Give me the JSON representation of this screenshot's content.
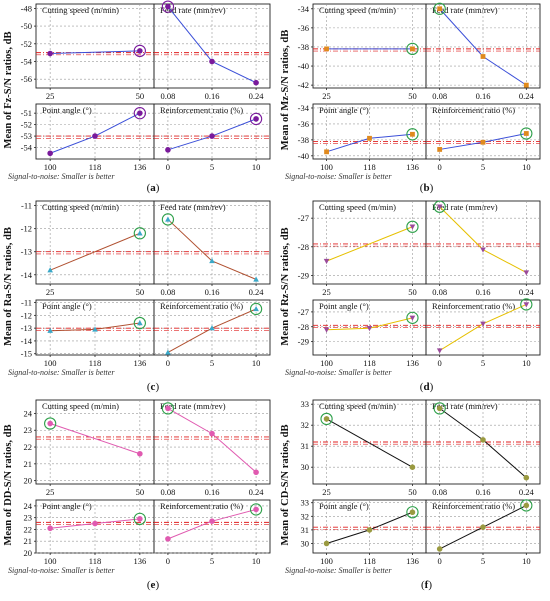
{
  "figure_note": "Signal-to-noise: Smaller is better",
  "panel_titles": [
    "Cutting speed (m/min)",
    "Feed rate (mm/rev)",
    "Point angle (°)",
    "Reinforcement ratio (%)"
  ],
  "chart_data": [
    {
      "type": "line",
      "letter": "(a)",
      "ylabel": "Mean of Fz-S/N ratios, dB",
      "line_color": "#3b4fd8",
      "marker_color": "#7a1a9c",
      "marker": "circle",
      "highlight_color": "#7a1a9c",
      "mean": -53.0,
      "rows": [
        {
          "ylim": [
            -57,
            -47.5
          ],
          "yticks": [
            -48,
            -50,
            -52,
            -54,
            -56
          ],
          "ticklabels": [
            "-48",
            "-50",
            "-52",
            "-54",
            "-56"
          ],
          "factors": [
            {
              "title": "Cutting speed (m/min)",
              "categories": [
                "25",
                "50"
              ],
              "values": [
                -53.1,
                -52.8
              ],
              "best": 1
            },
            {
              "title": "Feed rate (mm/rev)",
              "categories": [
                "0.08",
                "0.16",
                "0.24"
              ],
              "values": [
                -47.8,
                -54.0,
                -56.4
              ],
              "best": 0
            }
          ]
        },
        {
          "ylim": [
            -55,
            -50.2
          ],
          "yticks": [
            -51,
            -52,
            -53,
            -54
          ],
          "ticklabels": [
            "-51",
            "-52",
            "-53",
            "-54"
          ],
          "factors": [
            {
              "title": "Point angle (°)",
              "categories": [
                "100",
                "118",
                "136"
              ],
              "values": [
                -54.5,
                -53.0,
                -51.0
              ],
              "best": 2
            },
            {
              "title": "Reinforcement ratio (%)",
              "categories": [
                "0",
                "5",
                "10"
              ],
              "values": [
                -54.2,
                -53.0,
                -51.5
              ],
              "best": 2
            }
          ]
        }
      ]
    },
    {
      "type": "line",
      "letter": "(b)",
      "ylabel": "Mean of Mz-S/N ratios, dB",
      "line_color": "#3b4fd8",
      "marker_color": "#e08a1e",
      "marker": "square",
      "highlight_color": "#2ea04a",
      "mean": -38.2,
      "rows": [
        {
          "ylim": [
            -42.3,
            -33.5
          ],
          "yticks": [
            -34,
            -36,
            -38,
            -40,
            -42
          ],
          "ticklabels": [
            "-34",
            "-36",
            "-38",
            "-40",
            "-42"
          ],
          "factors": [
            {
              "title": "Cutting speed (m/min)",
              "categories": [
                "25",
                "50"
              ],
              "values": [
                -38.2,
                -38.2
              ],
              "best": 1
            },
            {
              "title": "Feed rate (mm/rev)",
              "categories": [
                "0.08",
                "0.16",
                "0.24"
              ],
              "values": [
                -34.0,
                -39.0,
                -42.0
              ],
              "best": 0
            }
          ]
        },
        {
          "ylim": [
            -40.4,
            -33.5
          ],
          "yticks": [
            -34,
            -36,
            -38,
            -40
          ],
          "ticklabels": [
            "-34",
            "-36",
            "-38",
            "-40"
          ],
          "factors": [
            {
              "title": "Point angle (°)",
              "categories": [
                "100",
                "118",
                "136"
              ],
              "values": [
                -39.5,
                -37.8,
                -37.3
              ],
              "best": 2
            },
            {
              "title": "Reinforcement ratio (%)",
              "categories": [
                "0",
                "5",
                "10"
              ],
              "values": [
                -39.2,
                -38.3,
                -37.2
              ],
              "best": 2
            }
          ]
        }
      ]
    },
    {
      "type": "line",
      "letter": "(c)",
      "ylabel": "Mean of Ra-S/N ratios, dB",
      "line_color": "#b05030",
      "marker_color": "#3aa8c8",
      "marker": "triangle",
      "highlight_color": "#2ea04a",
      "mean": -13.0,
      "rows": [
        {
          "ylim": [
            -14.4,
            -10.8
          ],
          "yticks": [
            -11,
            -12,
            -13,
            -14
          ],
          "ticklabels": [
            "-11",
            "-12",
            "-13",
            "-14"
          ],
          "factors": [
            {
              "title": "Cutting speed (m/min)",
              "categories": [
                "25",
                "50"
              ],
              "values": [
                -13.8,
                -12.2
              ],
              "best": 1
            },
            {
              "title": "Feed rate (mm/rev)",
              "categories": [
                "0.08",
                "0.16",
                "0.24"
              ],
              "values": [
                -11.6,
                -13.4,
                -14.2
              ],
              "best": 0
            }
          ]
        },
        {
          "ylim": [
            -15.1,
            -10.8
          ],
          "yticks": [
            -11,
            -12,
            -13,
            -14,
            -15
          ],
          "ticklabels": [
            "-11",
            "-12",
            "-13",
            "-14",
            "-15"
          ],
          "factors": [
            {
              "title": "Point angle (°)",
              "categories": [
                "100",
                "118",
                "136"
              ],
              "values": [
                -13.2,
                -13.1,
                -12.6
              ],
              "best": 2
            },
            {
              "title": "Reinforcement ratio (%)",
              "categories": [
                "0",
                "5",
                "10"
              ],
              "values": [
                -14.9,
                -13.0,
                -11.5
              ],
              "best": 2
            }
          ]
        }
      ]
    },
    {
      "type": "line",
      "letter": "(d)",
      "ylabel": "Mean of Rz-S/N ratios, dB",
      "line_color": "#e6c000",
      "marker_color": "#9a4a9a",
      "marker": "triangle-down",
      "highlight_color": "#2ea04a",
      "mean": -27.9,
      "rows": [
        {
          "ylim": [
            -29.3,
            -26.4
          ],
          "yticks": [
            -27,
            -28,
            -29
          ],
          "ticklabels": [
            "-27",
            "-28",
            "-29"
          ],
          "factors": [
            {
              "title": "Cutting speed (m/min)",
              "categories": [
                "25",
                "50"
              ],
              "values": [
                -28.5,
                -27.3
              ],
              "best": 1
            },
            {
              "title": "Feed rate (mm/rev)",
              "categories": [
                "0.08",
                "0.16",
                "0.24"
              ],
              "values": [
                -26.6,
                -28.1,
                -28.9
              ],
              "best": 0
            }
          ]
        },
        {
          "ylim": [
            -29.9,
            -26.2
          ],
          "yticks": [
            -27,
            -28,
            -29
          ],
          "ticklabels": [
            "-27",
            "-28",
            "-29"
          ],
          "factors": [
            {
              "title": "Point angle (°)",
              "categories": [
                "100",
                "118",
                "136"
              ],
              "values": [
                -28.2,
                -28.1,
                -27.4
              ],
              "best": 2
            },
            {
              "title": "Reinforcement ratio (%)",
              "categories": [
                "0",
                "5",
                "10"
              ],
              "values": [
                -29.6,
                -27.8,
                -26.5
              ],
              "best": 2
            }
          ]
        }
      ]
    },
    {
      "type": "line",
      "letter": "(e)",
      "ylabel": "Mean of DD-S/N ratios, dB",
      "line_color": "#e05ab0",
      "marker_color": "#e05ab0",
      "marker": "circle",
      "highlight_color": "#2ea04a",
      "mean": 22.6,
      "rows": [
        {
          "ylim": [
            19.8,
            24.8
          ],
          "yticks": [
            20,
            21,
            22,
            23,
            24
          ],
          "ticklabels": [
            "20",
            "21",
            "22",
            "23",
            "24"
          ],
          "factors": [
            {
              "title": "Cutting speed (m/min)",
              "categories": [
                "25",
                "50"
              ],
              "values": [
                23.4,
                21.6
              ],
              "best": 0
            },
            {
              "title": "Feed rate (mm/rev)",
              "categories": [
                "0.08",
                "0.16",
                "0.24"
              ],
              "values": [
                24.3,
                22.8,
                20.5
              ],
              "best": 0
            }
          ]
        },
        {
          "ylim": [
            20,
            24.5
          ],
          "yticks": [
            20,
            21,
            22,
            23,
            24
          ],
          "ticklabels": [
            "20",
            "21",
            "22",
            "23",
            "24"
          ],
          "factors": [
            {
              "title": "Point angle (°)",
              "categories": [
                "100",
                "118",
                "136"
              ],
              "values": [
                22.1,
                22.5,
                22.9
              ],
              "best": 2
            },
            {
              "title": "Reinforcement ratio (%)",
              "categories": [
                "0",
                "5",
                "10"
              ],
              "values": [
                21.2,
                22.7,
                23.7
              ],
              "best": 2
            }
          ]
        }
      ]
    },
    {
      "type": "line",
      "letter": "(f)",
      "ylabel": "Mean of CD-S/N ratios, dB",
      "line_color": "#111111",
      "marker_color": "#9a9a40",
      "marker": "circle",
      "highlight_color": "#2ea04a",
      "mean": 31.2,
      "rows": [
        {
          "ylim": [
            29.2,
            33.2
          ],
          "yticks": [
            30,
            31,
            32,
            33
          ],
          "ticklabels": [
            "30",
            "31",
            "32",
            "33"
          ],
          "factors": [
            {
              "title": "Cutting speed (m/min)",
              "categories": [
                "25",
                "50"
              ],
              "values": [
                32.3,
                30.0
              ],
              "best": 0
            },
            {
              "title": "Feed rate (mm/rev)",
              "categories": [
                "0.08",
                "0.16",
                "0.24"
              ],
              "values": [
                32.8,
                31.3,
                29.5
              ],
              "best": 0
            }
          ]
        },
        {
          "ylim": [
            29.3,
            33.2
          ],
          "yticks": [
            30,
            31,
            32,
            33
          ],
          "ticklabels": [
            "30",
            "31",
            "32",
            "33"
          ],
          "factors": [
            {
              "title": "Point angle (°)",
              "categories": [
                "100",
                "118",
                "136"
              ],
              "values": [
                30.0,
                31.0,
                32.3
              ],
              "best": 2
            },
            {
              "title": "Reinforcement ratio (%)",
              "categories": [
                "0",
                "5",
                "10"
              ],
              "values": [
                29.6,
                31.2,
                32.8
              ],
              "best": 2
            }
          ]
        }
      ]
    }
  ]
}
